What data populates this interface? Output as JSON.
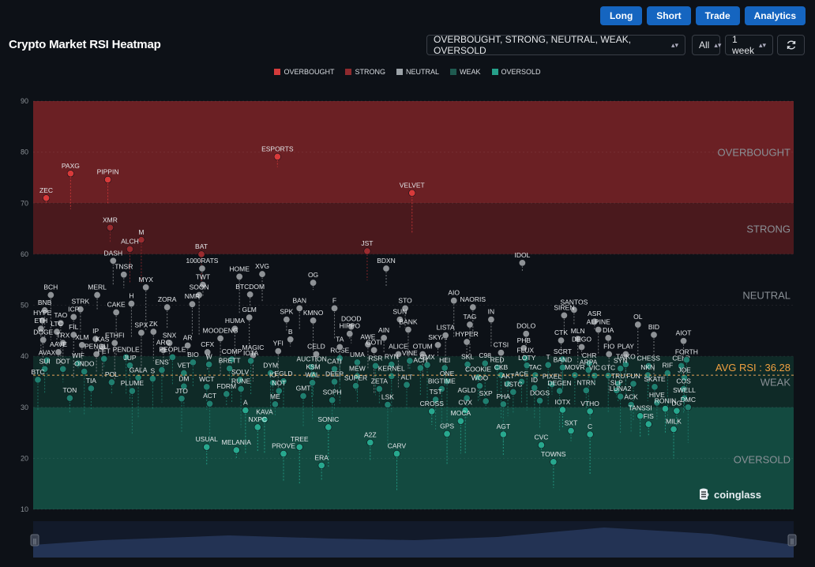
{
  "toolbar": {
    "long": "Long",
    "short": "Short",
    "trade": "Trade",
    "analytics": "Analytics"
  },
  "header": {
    "title": "Crypto Market RSI Heatmap",
    "filter": "OVERBOUGHT, STRONG, NEUTRAL, WEAK, OVERSOLD",
    "scope": "All",
    "period": "1 week",
    "refresh_icon": "refresh-icon"
  },
  "logo": {
    "text": "coinglass",
    "icon": "coinglass-logo-icon"
  },
  "chart_data": {
    "type": "scatter",
    "title": "",
    "ylim": [
      10,
      90
    ],
    "yticks": [
      10,
      20,
      30,
      40,
      50,
      60,
      70,
      80,
      90
    ],
    "bands": [
      {
        "name": "OVERBOUGHT",
        "from": 70,
        "to": 90,
        "color": "#6b2024"
      },
      {
        "name": "STRONG",
        "from": 60,
        "to": 70,
        "color": "#4a191d"
      },
      {
        "name": "NEUTRAL",
        "from": 40,
        "to": 60,
        "color": "#0d1117"
      },
      {
        "name": "WEAK",
        "from": 30,
        "to": 40,
        "color": "#0f2a27"
      },
      {
        "name": "OVERSOLD",
        "from": 10,
        "to": 30,
        "color": "#134a40"
      }
    ],
    "legend": [
      {
        "name": "OVERBOUGHT",
        "color": "#d33b3b"
      },
      {
        "name": "STRONG",
        "color": "#8f2a2e"
      },
      {
        "name": "NEUTRAL",
        "color": "#9ca3a8"
      },
      {
        "name": "WEAK",
        "color": "#1f5a50"
      },
      {
        "name": "OVERSOLD",
        "color": "#26a08a"
      }
    ],
    "avg_rsi": 36.28,
    "avg_label": "AVG RSI : 36.28",
    "points": [
      {
        "n": "ZEC",
        "x": 1.2,
        "y": 71
      },
      {
        "n": "PAXG",
        "x": 4.4,
        "y": 75.8
      },
      {
        "n": "PIPPIN",
        "x": 9.3,
        "y": 74.6
      },
      {
        "n": "XMR",
        "x": 9.6,
        "y": 65.2
      },
      {
        "n": "M",
        "x": 13.7,
        "y": 62.8
      },
      {
        "n": "ALCH",
        "x": 12.2,
        "y": 61
      },
      {
        "n": "DASH",
        "x": 10.0,
        "y": 58.7
      },
      {
        "n": "TNSR",
        "x": 11.4,
        "y": 56
      },
      {
        "n": "MYX",
        "x": 14.3,
        "y": 53.5
      },
      {
        "n": "BAT",
        "x": 21.6,
        "y": 60
      },
      {
        "n": "1000RATS",
        "x": 21.7,
        "y": 57.2
      },
      {
        "n": "TWT",
        "x": 21.8,
        "y": 54
      },
      {
        "n": "SOON",
        "x": 21.3,
        "y": 52
      },
      {
        "n": "NMR",
        "x": 20.4,
        "y": 50.2
      },
      {
        "n": "ZORA",
        "x": 17.1,
        "y": 49.6
      },
      {
        "n": "ESPORTS",
        "x": 31.6,
        "y": 79.1
      },
      {
        "n": "VELVET",
        "x": 49.3,
        "y": 72
      },
      {
        "n": "JST",
        "x": 43.4,
        "y": 60.6
      },
      {
        "n": "BDXN",
        "x": 45.9,
        "y": 57.2
      },
      {
        "n": "IDOL",
        "x": 63.8,
        "y": 58.3
      },
      {
        "n": "HOME",
        "x": 26.6,
        "y": 55.6
      },
      {
        "n": "XVG",
        "x": 29.6,
        "y": 56.1
      },
      {
        "n": "BTCDOM",
        "x": 28.0,
        "y": 52.1
      },
      {
        "n": "OG",
        "x": 36.3,
        "y": 54.4
      },
      {
        "n": "AIO",
        "x": 54.8,
        "y": 50.9
      },
      {
        "n": "NAORIS",
        "x": 57.3,
        "y": 49.6
      },
      {
        "n": "SANTOS",
        "x": 70.6,
        "y": 49.1
      },
      {
        "n": "BCH",
        "x": 1.8,
        "y": 52
      },
      {
        "n": "BNB",
        "x": 1.0,
        "y": 49
      },
      {
        "n": "HYPE",
        "x": 0.7,
        "y": 47
      },
      {
        "n": "MERL",
        "x": 7.9,
        "y": 52
      },
      {
        "n": "CAKE",
        "x": 10.4,
        "y": 48.6
      },
      {
        "n": "H",
        "x": 12.4,
        "y": 50.3
      },
      {
        "n": "STRK",
        "x": 5.7,
        "y": 49.2
      },
      {
        "n": "ICP",
        "x": 4.8,
        "y": 47.7
      },
      {
        "n": "TAO",
        "x": 3.1,
        "y": 46.5
      },
      {
        "n": "GLM",
        "x": 27.9,
        "y": 47.6
      },
      {
        "n": "BAN",
        "x": 34.5,
        "y": 49.4
      },
      {
        "n": "SPK",
        "x": 32.8,
        "y": 47.2
      },
      {
        "n": "KMNO",
        "x": 36.3,
        "y": 47
      },
      {
        "n": "F",
        "x": 39.1,
        "y": 49.4
      },
      {
        "n": "STO",
        "x": 48.4,
        "y": 49.4
      },
      {
        "n": "SUN",
        "x": 47.7,
        "y": 47.2
      },
      {
        "n": "BANK",
        "x": 48.8,
        "y": 45.2
      },
      {
        "n": "IN",
        "x": 59.7,
        "y": 47.2
      },
      {
        "n": "SIREN",
        "x": 69.3,
        "y": 48
      },
      {
        "n": "ASR",
        "x": 73.3,
        "y": 46.8
      },
      {
        "n": "OL",
        "x": 79.0,
        "y": 46.2
      },
      {
        "n": "HUMA",
        "x": 26.0,
        "y": 45.4
      },
      {
        "n": "DOOD",
        "x": 41.3,
        "y": 45.8
      },
      {
        "n": "HIPPO",
        "x": 41.1,
        "y": 44.4
      },
      {
        "n": "TAG",
        "x": 56.9,
        "y": 46.2
      },
      {
        "n": "ALPINE",
        "x": 73.8,
        "y": 45.2
      },
      {
        "n": "DOLO",
        "x": 64.3,
        "y": 44.4
      },
      {
        "n": "BID",
        "x": 81.1,
        "y": 44.2
      },
      {
        "n": "AIOT",
        "x": 85.0,
        "y": 43
      },
      {
        "n": "ETH",
        "x": 0.5,
        "y": 45.4
      },
      {
        "n": "LTC",
        "x": 2.6,
        "y": 44.8
      },
      {
        "n": "FIL",
        "x": 4.8,
        "y": 44.2
      },
      {
        "n": "DOGE",
        "x": 0.8,
        "y": 43.2
      },
      {
        "n": "TRX",
        "x": 3.4,
        "y": 42.6
      },
      {
        "n": "IP",
        "x": 7.7,
        "y": 43.4
      },
      {
        "n": "ETHFI",
        "x": 10.2,
        "y": 42.6
      },
      {
        "n": "KAS",
        "x": 8.6,
        "y": 41.8
      },
      {
        "n": "XLM",
        "x": 5.9,
        "y": 42.2
      },
      {
        "n": "AAVE",
        "x": 2.8,
        "y": 40.8
      },
      {
        "n": "SPX",
        "x": 13.7,
        "y": 44.6
      },
      {
        "n": "ZK",
        "x": 15.3,
        "y": 44.8
      },
      {
        "n": "SNX",
        "x": 17.4,
        "y": 42.6
      },
      {
        "n": "AR",
        "x": 19.8,
        "y": 42.1
      },
      {
        "n": "MOODENG",
        "x": 24.1,
        "y": 43.5
      },
      {
        "n": "ARC",
        "x": 16.6,
        "y": 41.2
      },
      {
        "n": "CFX",
        "x": 22.4,
        "y": 40.8
      },
      {
        "n": "B",
        "x": 33.3,
        "y": 43.3
      },
      {
        "n": "YFI",
        "x": 31.7,
        "y": 41
      },
      {
        "n": "MAGIC",
        "x": 28.4,
        "y": 40.2
      },
      {
        "n": "CELD",
        "x": 36.7,
        "y": 40.4
      },
      {
        "n": "ROSE",
        "x": 39.8,
        "y": 39.6
      },
      {
        "n": "TA",
        "x": 39.8,
        "y": 41.8
      },
      {
        "n": "AWE",
        "x": 43.5,
        "y": 42.3
      },
      {
        "n": "AIN",
        "x": 45.6,
        "y": 43.6
      },
      {
        "n": "COTI",
        "x": 44.3,
        "y": 41.2
      },
      {
        "n": "ALICE",
        "x": 47.5,
        "y": 40.4
      },
      {
        "n": "OTUM",
        "x": 50.7,
        "y": 40.4
      },
      {
        "n": "SKYAI",
        "x": 52.7,
        "y": 42.2
      },
      {
        "n": "LISTA",
        "x": 53.7,
        "y": 44.1
      },
      {
        "n": "HYPER",
        "x": 56.5,
        "y": 42.8
      },
      {
        "n": "CTSI",
        "x": 61.0,
        "y": 40.7
      },
      {
        "n": "PHB",
        "x": 64.0,
        "y": 41.6
      },
      {
        "n": "CTK",
        "x": 68.9,
        "y": 43.1
      },
      {
        "n": "MLN",
        "x": 71.1,
        "y": 43.4
      },
      {
        "n": "DIA",
        "x": 75.1,
        "y": 43.6
      },
      {
        "n": "DEGO",
        "x": 71.6,
        "y": 41.8
      },
      {
        "n": "FIO",
        "x": 75.2,
        "y": 40.4
      },
      {
        "n": "PLAY",
        "x": 77.4,
        "y": 40.4
      },
      {
        "n": "PENGU",
        "x": 7.8,
        "y": 40.4
      },
      {
        "n": "FET",
        "x": 8.8,
        "y": 39.5
      },
      {
        "n": "PENDLE",
        "x": 11.7,
        "y": 39.8
      },
      {
        "n": "PEOPLE",
        "x": 17.8,
        "y": 39.8
      },
      {
        "n": "AVAX",
        "x": 1.3,
        "y": 39.2
      },
      {
        "n": "WIF",
        "x": 5.4,
        "y": 38.6
      },
      {
        "n": "JUP",
        "x": 12.2,
        "y": 38.2
      },
      {
        "n": "BIO",
        "x": 20.5,
        "y": 38.8
      },
      {
        "n": "W",
        "x": 22.6,
        "y": 38.4
      },
      {
        "n": "COMP",
        "x": 25.6,
        "y": 39.4
      },
      {
        "n": "IOTA",
        "x": 28.1,
        "y": 39.1
      },
      {
        "n": "SUI",
        "x": 1.0,
        "y": 37.5
      },
      {
        "n": "DOT",
        "x": 3.4,
        "y": 37.5
      },
      {
        "n": "ONDO",
        "x": 6.2,
        "y": 37
      },
      {
        "n": "ENS",
        "x": 16.4,
        "y": 37.3
      },
      {
        "n": "VET",
        "x": 19.3,
        "y": 36.7
      },
      {
        "n": "BRETT",
        "x": 25.3,
        "y": 37.6
      },
      {
        "n": "DYM",
        "x": 30.7,
        "y": 36.7
      },
      {
        "n": "AUCTION",
        "x": 36.1,
        "y": 37.9
      },
      {
        "n": "KSM",
        "x": 36.3,
        "y": 36.4
      },
      {
        "n": "CATI",
        "x": 39.1,
        "y": 37.5
      },
      {
        "n": "UMA",
        "x": 42.1,
        "y": 38.8
      },
      {
        "n": "RSR",
        "x": 44.5,
        "y": 38.1
      },
      {
        "n": "RYN",
        "x": 46.6,
        "y": 38.4
      },
      {
        "n": "VINE",
        "x": 49.0,
        "y": 39.1
      },
      {
        "n": "GMX",
        "x": 51.3,
        "y": 38.3
      },
      {
        "n": "ACH",
        "x": 50.4,
        "y": 37.7
      },
      {
        "n": "HEI",
        "x": 53.6,
        "y": 37.7
      },
      {
        "n": "SKL",
        "x": 56.6,
        "y": 38.4
      },
      {
        "n": "C98",
        "x": 58.9,
        "y": 38.6
      },
      {
        "n": "RED",
        "x": 60.5,
        "y": 37.8
      },
      {
        "n": "FLUX",
        "x": 64.2,
        "y": 39.6
      },
      {
        "n": "LOTY",
        "x": 64.4,
        "y": 38.2
      },
      {
        "n": "SCRT",
        "x": 69.1,
        "y": 39.4
      },
      {
        "n": "BAND",
        "x": 69.1,
        "y": 37.8
      },
      {
        "n": "CHR",
        "x": 72.6,
        "y": 38.6
      },
      {
        "n": "ARPA",
        "x": 72.5,
        "y": 37.3
      },
      {
        "n": "TAIKO",
        "x": 77.4,
        "y": 38.4
      },
      {
        "n": "CHESS",
        "x": 80.4,
        "y": 38.1
      },
      {
        "n": "CELR",
        "x": 84.7,
        "y": 38.1
      },
      {
        "n": "FORTH",
        "x": 85.4,
        "y": 39.3
      },
      {
        "n": "BTC",
        "x": 0.1,
        "y": 35.4
      },
      {
        "n": "TIA",
        "x": 7.1,
        "y": 33.7
      },
      {
        "n": "POL",
        "x": 9.8,
        "y": 34.9
      },
      {
        "n": "GALA",
        "x": 13.3,
        "y": 35.8
      },
      {
        "n": "S",
        "x": 15.2,
        "y": 35.6
      },
      {
        "n": "DM",
        "x": 19.3,
        "y": 34.1
      },
      {
        "n": "SOLV",
        "x": 26.7,
        "y": 35.4
      },
      {
        "n": "RUNE",
        "x": 26.8,
        "y": 33.6
      },
      {
        "n": "EGLD",
        "x": 32.4,
        "y": 35.1
      },
      {
        "n": "IO",
        "x": 31.0,
        "y": 34.8
      },
      {
        "n": "NOT",
        "x": 31.8,
        "y": 33.2
      },
      {
        "n": "WAL",
        "x": 36.2,
        "y": 34.8
      },
      {
        "n": "DEEP",
        "x": 39.1,
        "y": 35
      },
      {
        "n": "MEW",
        "x": 42.1,
        "y": 36.1
      },
      {
        "n": "SUPER",
        "x": 41.9,
        "y": 34.2
      },
      {
        "n": "KERNEL",
        "x": 46.6,
        "y": 36.1
      },
      {
        "n": "ALT",
        "x": 48.6,
        "y": 34.4
      },
      {
        "n": "ZETA",
        "x": 45.0,
        "y": 33.6
      },
      {
        "n": "ONE",
        "x": 53.9,
        "y": 35.1
      },
      {
        "n": "BIGTIME",
        "x": 53.2,
        "y": 33.6
      },
      {
        "n": "COOKIE",
        "x": 58.0,
        "y": 35.9
      },
      {
        "n": "WOO",
        "x": 58.2,
        "y": 34.2
      },
      {
        "n": "CKB",
        "x": 61.0,
        "y": 36.3
      },
      {
        "n": "AKT",
        "x": 61.9,
        "y": 34.6
      },
      {
        "n": "ACE",
        "x": 63.7,
        "y": 35
      },
      {
        "n": "TAC",
        "x": 65.5,
        "y": 36.3
      },
      {
        "n": "T",
        "x": 67.2,
        "y": 38.3
      },
      {
        "n": "ID",
        "x": 65.4,
        "y": 33.8
      },
      {
        "n": "USTC",
        "x": 62.6,
        "y": 33
      },
      {
        "n": "PIXEL",
        "x": 67.7,
        "y": 34.5
      },
      {
        "n": "DEGEN",
        "x": 68.7,
        "y": 33.2
      },
      {
        "n": "MOVR",
        "x": 70.7,
        "y": 36.3
      },
      {
        "n": "NTRN",
        "x": 72.2,
        "y": 33.3
      },
      {
        "n": "VIC",
        "x": 73.3,
        "y": 36.2
      },
      {
        "n": "GTC",
        "x": 75.1,
        "y": 36.2
      },
      {
        "n": "SYN",
        "x": 76.7,
        "y": 37.6
      },
      {
        "n": "TRU",
        "x": 76.4,
        "y": 34.6
      },
      {
        "n": "SLP",
        "x": 76.2,
        "y": 33.3
      },
      {
        "n": "FUN",
        "x": 78.4,
        "y": 34.6
      },
      {
        "n": "NKN",
        "x": 80.3,
        "y": 36.3
      },
      {
        "n": "SKATE",
        "x": 81.2,
        "y": 34
      },
      {
        "n": "RIF",
        "x": 82.9,
        "y": 36.7
      },
      {
        "n": "JOE",
        "x": 85.1,
        "y": 35.8
      },
      {
        "n": "COS",
        "x": 85.0,
        "y": 33.6
      },
      {
        "n": "TON",
        "x": 4.3,
        "y": 31.8
      },
      {
        "n": "PLUME",
        "x": 12.5,
        "y": 33.2
      },
      {
        "n": "JTO",
        "x": 19.0,
        "y": 31.7
      },
      {
        "n": "WCT",
        "x": 22.3,
        "y": 34
      },
      {
        "n": "FDRM",
        "x": 24.9,
        "y": 32.6
      },
      {
        "n": "ACT",
        "x": 22.7,
        "y": 30.7
      },
      {
        "n": "GMT",
        "x": 35.0,
        "y": 32.2
      },
      {
        "n": "SOPH",
        "x": 38.8,
        "y": 31.4
      },
      {
        "n": "ME",
        "x": 31.3,
        "y": 30.6
      },
      {
        "n": "LSK",
        "x": 46.1,
        "y": 30.5
      },
      {
        "n": "TST",
        "x": 52.4,
        "y": 31.5
      },
      {
        "n": "AGLD",
        "x": 56.5,
        "y": 31.8
      },
      {
        "n": "SXP",
        "x": 59.0,
        "y": 31.2
      },
      {
        "n": "PHA",
        "x": 61.3,
        "y": 30.6
      },
      {
        "n": "DOGS",
        "x": 66.1,
        "y": 31.3
      },
      {
        "n": "IOTX",
        "x": 69.1,
        "y": 29.5
      },
      {
        "n": "VTHO",
        "x": 72.7,
        "y": 29.2
      },
      {
        "n": "LUNA2",
        "x": 76.7,
        "y": 32.1
      },
      {
        "n": "ACK",
        "x": 78.1,
        "y": 30.5
      },
      {
        "n": "HIVE",
        "x": 81.5,
        "y": 30.9
      },
      {
        "n": "SWELL",
        "x": 85.1,
        "y": 31.8
      },
      {
        "n": "DMC",
        "x": 85.6,
        "y": 30
      },
      {
        "n": "RONIN",
        "x": 82.6,
        "y": 29.7
      },
      {
        "n": "DG",
        "x": 84.1,
        "y": 29.3
      },
      {
        "n": "A",
        "x": 27.4,
        "y": 29.4
      },
      {
        "n": "KAVA",
        "x": 29.9,
        "y": 27.6
      },
      {
        "n": "NXPC",
        "x": 29.0,
        "y": 26.1
      },
      {
        "n": "CROSS",
        "x": 51.9,
        "y": 29.2
      },
      {
        "n": "CVX",
        "x": 56.3,
        "y": 29.4
      },
      {
        "n": "MOCA",
        "x": 55.7,
        "y": 27.3
      },
      {
        "n": "TANSSI",
        "x": 79.3,
        "y": 28.3
      },
      {
        "n": "FIS",
        "x": 80.4,
        "y": 26.7
      },
      {
        "n": "SONIC",
        "x": 38.3,
        "y": 26.1
      },
      {
        "n": "GPS",
        "x": 53.9,
        "y": 24.8
      },
      {
        "n": "AGT",
        "x": 61.3,
        "y": 24.7
      },
      {
        "n": "SXT",
        "x": 70.2,
        "y": 25.4
      },
      {
        "n": "C",
        "x": 72.7,
        "y": 24.7
      },
      {
        "n": "MILK",
        "x": 83.7,
        "y": 25.7
      },
      {
        "n": "USUAL",
        "x": 22.3,
        "y": 22.2
      },
      {
        "n": "MELANIA",
        "x": 26.2,
        "y": 21.6
      },
      {
        "n": "TREE",
        "x": 34.5,
        "y": 22.2
      },
      {
        "n": "PROVE",
        "x": 32.4,
        "y": 20.9
      },
      {
        "n": "A2Z",
        "x": 43.8,
        "y": 23.1
      },
      {
        "n": "CVC",
        "x": 66.3,
        "y": 22.6
      },
      {
        "n": "CARV",
        "x": 47.3,
        "y": 20.9
      },
      {
        "n": "TOWNS",
        "x": 67.9,
        "y": 19.3
      },
      {
        "n": "ERA",
        "x": 37.4,
        "y": 18.6
      }
    ]
  }
}
